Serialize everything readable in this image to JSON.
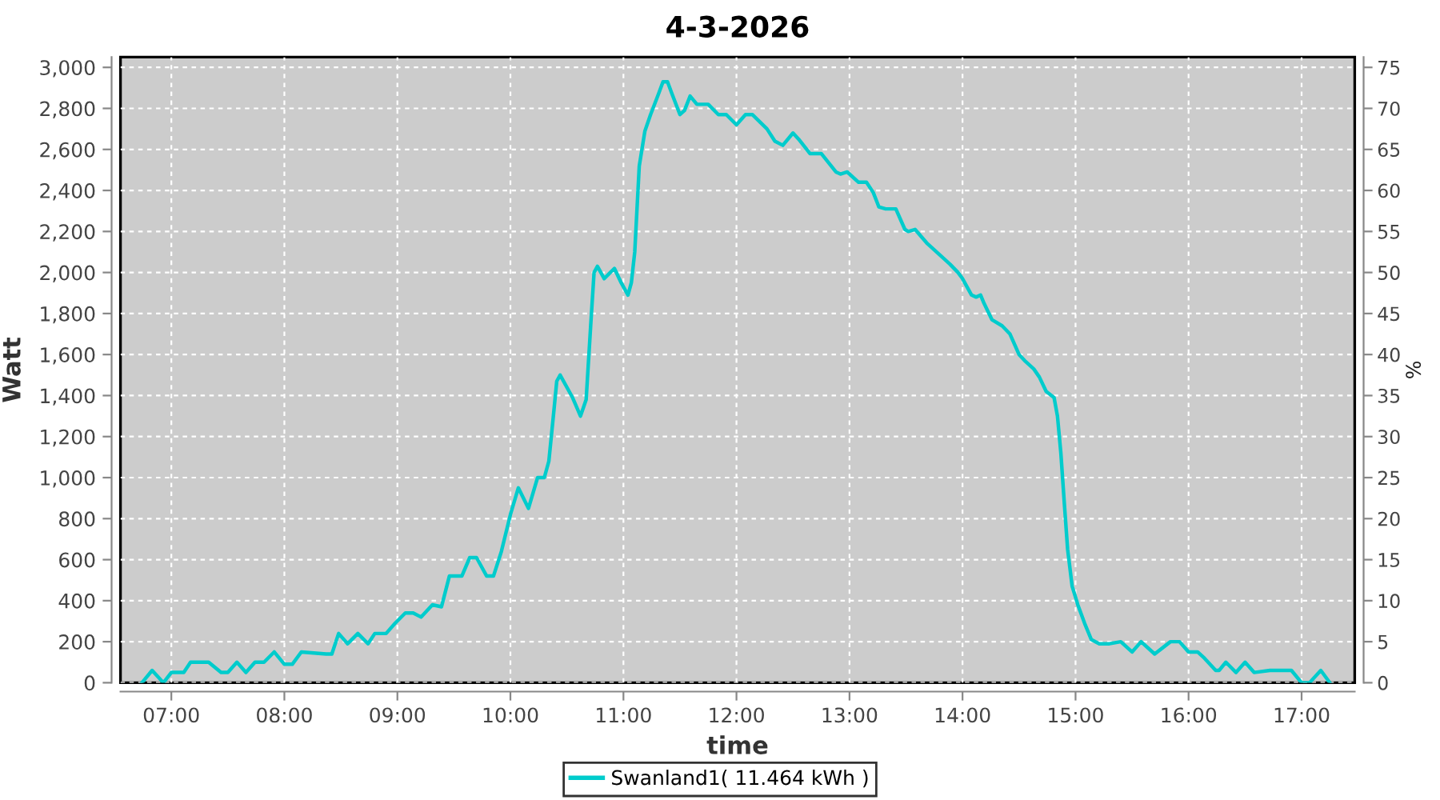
{
  "chart_data": {
    "type": "line",
    "title": "4-3-2026",
    "xlabel": "time",
    "ylabel": "Watt",
    "y2label": "%",
    "x": [
      6.74,
      6.83,
      6.93,
      7.0,
      7.11,
      7.17,
      7.33,
      7.44,
      7.5,
      7.58,
      7.66,
      7.74,
      7.82,
      7.91,
      8.0,
      8.07,
      8.15,
      8.37,
      8.42,
      8.48,
      8.56,
      8.65,
      8.74,
      8.8,
      8.9,
      8.98,
      9.07,
      9.14,
      9.21,
      9.31,
      9.39,
      9.46,
      9.57,
      9.64,
      9.7,
      9.79,
      9.85,
      9.92,
      10.0,
      10.07,
      10.16,
      10.24,
      10.3,
      10.34,
      10.38,
      10.41,
      10.44,
      10.55,
      10.62,
      10.67,
      10.71,
      10.74,
      10.77,
      10.83,
      10.92,
      10.98,
      11.04,
      11.07,
      11.1,
      11.14,
      11.19,
      11.24,
      11.31,
      11.35,
      11.39,
      11.43,
      11.5,
      11.54,
      11.59,
      11.65,
      11.75,
      11.84,
      11.91,
      12.0,
      12.08,
      12.14,
      12.27,
      12.34,
      12.41,
      12.5,
      12.55,
      12.65,
      12.75,
      12.88,
      12.92,
      12.98,
      13.08,
      13.15,
      13.21,
      13.26,
      13.32,
      13.41,
      13.49,
      13.52,
      13.58,
      13.69,
      13.83,
      13.89,
      13.96,
      14.0,
      14.08,
      14.12,
      14.16,
      14.19,
      14.26,
      14.35,
      14.42,
      14.5,
      14.55,
      14.63,
      14.68,
      14.74,
      14.81,
      14.84,
      14.87,
      14.9,
      14.93,
      14.97,
      15.02,
      15.08,
      15.14,
      15.21,
      15.3,
      15.4,
      15.5,
      15.58,
      15.7,
      15.84,
      15.92,
      16.0,
      16.08,
      16.14,
      16.24,
      16.27,
      16.33,
      16.42,
      16.5,
      16.58,
      16.72,
      16.91,
      17.0,
      17.07,
      17.17,
      17.25
    ],
    "series": [
      {
        "name": "Swanland1( 11.464 kWh )",
        "color": "#00cccc",
        "values": [
          0,
          60,
          0,
          50,
          50,
          100,
          100,
          50,
          50,
          100,
          50,
          100,
          100,
          150,
          90,
          90,
          150,
          140,
          140,
          240,
          190,
          240,
          190,
          240,
          240,
          290,
          340,
          340,
          320,
          380,
          370,
          520,
          520,
          610,
          610,
          520,
          520,
          640,
          820,
          950,
          850,
          1000,
          1000,
          1080,
          1300,
          1470,
          1500,
          1390,
          1300,
          1380,
          1740,
          2000,
          2030,
          1970,
          2020,
          1950,
          1890,
          1950,
          2100,
          2520,
          2690,
          2770,
          2870,
          2930,
          2930,
          2870,
          2770,
          2790,
          2860,
          2820,
          2820,
          2770,
          2770,
          2720,
          2770,
          2770,
          2700,
          2640,
          2620,
          2680,
          2650,
          2580,
          2580,
          2490,
          2480,
          2490,
          2440,
          2440,
          2390,
          2320,
          2310,
          2310,
          2210,
          2200,
          2210,
          2140,
          2070,
          2040,
          2000,
          1970,
          1890,
          1880,
          1890,
          1850,
          1770,
          1740,
          1700,
          1600,
          1570,
          1530,
          1490,
          1420,
          1390,
          1300,
          1120,
          880,
          650,
          470,
          380,
          290,
          210,
          190,
          190,
          200,
          150,
          200,
          140,
          200,
          200,
          150,
          150,
          120,
          60,
          60,
          100,
          50,
          100,
          50,
          60,
          60,
          0,
          0,
          60,
          0
        ]
      }
    ],
    "xlim": [
      6.55,
      17.47
    ],
    "xticks": [
      {
        "value": 7,
        "label": "07:00"
      },
      {
        "value": 8,
        "label": "08:00"
      },
      {
        "value": 9,
        "label": "09:00"
      },
      {
        "value": 10,
        "label": "10:00"
      },
      {
        "value": 11,
        "label": "11:00"
      },
      {
        "value": 12,
        "label": "12:00"
      },
      {
        "value": 13,
        "label": "13:00"
      },
      {
        "value": 14,
        "label": "14:00"
      },
      {
        "value": 15,
        "label": "15:00"
      },
      {
        "value": 16,
        "label": "16:00"
      },
      {
        "value": 17,
        "label": "17:00"
      }
    ],
    "ylim": [
      0,
      3050
    ],
    "yticks": [
      0,
      200,
      400,
      600,
      800,
      {
        "value": 1000,
        "label": "1,000"
      },
      {
        "value": 1200,
        "label": "1,200"
      },
      {
        "value": 1400,
        "label": "1,400"
      },
      {
        "value": 1600,
        "label": "1,600"
      },
      {
        "value": 1800,
        "label": "1,800"
      },
      {
        "value": 2000,
        "label": "2,000"
      },
      {
        "value": 2200,
        "label": "2,200"
      },
      {
        "value": 2400,
        "label": "2,400"
      },
      {
        "value": 2600,
        "label": "2,600"
      },
      {
        "value": 2800,
        "label": "2,800"
      },
      {
        "value": 3000,
        "label": "3,000"
      }
    ],
    "y2lim": [
      0,
      76.25
    ],
    "y2ticks": [
      0,
      5,
      10,
      15,
      20,
      25,
      30,
      35,
      40,
      45,
      50,
      55,
      60,
      65,
      70,
      75
    ],
    "grid": true,
    "legend": "bottom",
    "line_style": "solid"
  }
}
